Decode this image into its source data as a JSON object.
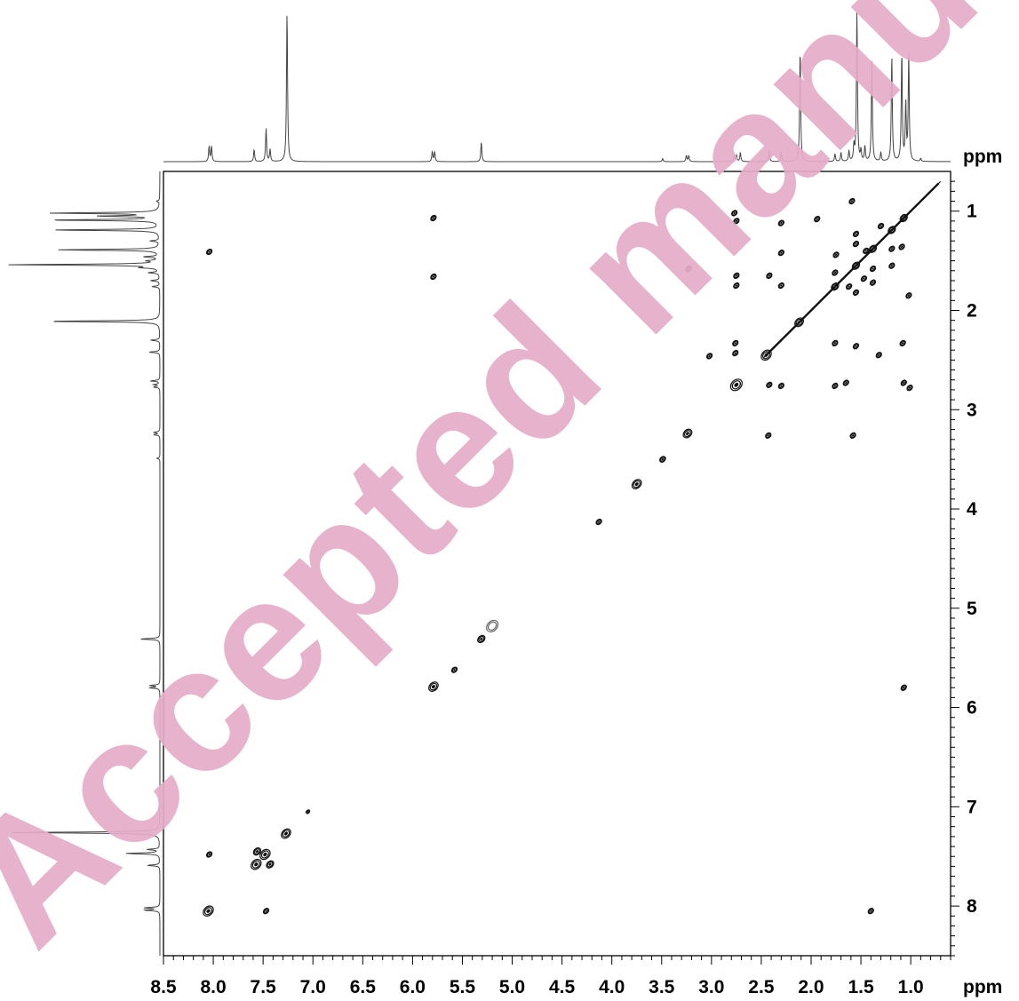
{
  "chart_data": {
    "type": "scatter",
    "subtype": "2D NMR correlation map (COSY) with 1D projection spectra",
    "x_unit_label": "ppm",
    "y_unit_label": "ppm",
    "x_axis": {
      "range": [
        8.5,
        0.6
      ],
      "reversed": true,
      "tick_labels": [
        "8.5",
        "8.0",
        "7.5",
        "7.0",
        "6.5",
        "6.0",
        "5.5",
        "5.0",
        "4.5",
        "4.0",
        "3.5",
        "3.0",
        "2.5",
        "2.0",
        "1.5",
        "1.0"
      ]
    },
    "y_axis": {
      "range": [
        0.6,
        8.5
      ],
      "position": "right",
      "tick_labels": [
        "1",
        "2",
        "3",
        "4",
        "5",
        "6",
        "7",
        "8"
      ]
    },
    "grid": false,
    "projection_peaks": [
      {
        "ppm": 8.03,
        "height": 0.2,
        "doublet": true
      },
      {
        "ppm": 7.59,
        "height": 0.08
      },
      {
        "ppm": 7.47,
        "height": 0.22
      },
      {
        "ppm": 7.43,
        "height": 0.08
      },
      {
        "ppm": 7.26,
        "height": 1.0
      },
      {
        "ppm": 5.79,
        "height": 0.13,
        "doublet": true
      },
      {
        "ppm": 5.31,
        "height": 0.13
      },
      {
        "ppm": 3.49,
        "height": 0.02
      },
      {
        "ppm": 3.24,
        "height": 0.08,
        "doublet": true
      },
      {
        "ppm": 2.76,
        "height": 0.08,
        "doublet": true
      },
      {
        "ppm": 2.71,
        "height": 0.06
      },
      {
        "ppm": 2.42,
        "height": 0.07
      },
      {
        "ppm": 2.3,
        "height": 0.06
      },
      {
        "ppm": 2.11,
        "height": 0.75
      },
      {
        "ppm": 1.76,
        "height": 0.05
      },
      {
        "ppm": 1.7,
        "height": 0.06
      },
      {
        "ppm": 1.62,
        "height": 0.07
      },
      {
        "ppm": 1.57,
        "height": 0.1
      },
      {
        "ppm": 1.54,
        "height": 1.0
      },
      {
        "ppm": 1.5,
        "height": 0.07
      },
      {
        "ppm": 1.46,
        "height": 0.1
      },
      {
        "ppm": 1.39,
        "height": 0.66
      },
      {
        "ppm": 1.3,
        "height": 0.06
      },
      {
        "ppm": 1.19,
        "height": 0.7
      },
      {
        "ppm": 1.09,
        "height": 0.72
      },
      {
        "ppm": 1.05,
        "height": 0.38
      },
      {
        "ppm": 1.02,
        "height": 0.7
      },
      {
        "ppm": 0.9,
        "height": 0.02
      }
    ],
    "diagonal_peaks": [
      {
        "x": 8.05,
        "y": 8.05,
        "size": 1.4
      },
      {
        "x": 7.57,
        "y": 7.58,
        "size": 1.4
      },
      {
        "x": 7.48,
        "y": 7.48,
        "size": 1.4
      },
      {
        "x": 7.43,
        "y": 7.58,
        "size": 1.0
      },
      {
        "x": 7.56,
        "y": 7.45,
        "size": 1.0
      },
      {
        "x": 7.27,
        "y": 7.27,
        "size": 1.3
      },
      {
        "x": 7.05,
        "y": 7.05,
        "size": 0.5
      },
      {
        "x": 5.79,
        "y": 5.79,
        "size": 1.3
      },
      {
        "x": 5.31,
        "y": 5.31,
        "size": 1.0
      },
      {
        "x": 5.2,
        "y": 5.18,
        "size": 1.6,
        "open": true
      },
      {
        "x": 3.75,
        "y": 3.75,
        "size": 1.3
      },
      {
        "x": 3.49,
        "y": 3.5,
        "size": 0.8
      },
      {
        "x": 3.24,
        "y": 3.24,
        "size": 1.2
      },
      {
        "x": 2.75,
        "y": 2.75,
        "size": 1.6
      },
      {
        "x": 2.45,
        "y": 2.45,
        "size": 1.4
      },
      {
        "x": 2.12,
        "y": 2.12,
        "size": 1.2
      },
      {
        "x": 1.76,
        "y": 1.76,
        "size": 1.0
      },
      {
        "x": 1.55,
        "y": 1.55,
        "size": 1.0
      },
      {
        "x": 1.38,
        "y": 1.38,
        "size": 1.0
      },
      {
        "x": 1.19,
        "y": 1.19,
        "size": 1.0
      },
      {
        "x": 1.07,
        "y": 1.07,
        "size": 1.0
      }
    ],
    "cross_peaks": [
      [
        8.04,
        1.41
      ],
      [
        8.04,
        7.48
      ],
      [
        7.47,
        8.05
      ],
      [
        5.79,
        1.07
      ],
      [
        5.79,
        1.66
      ],
      [
        1.07,
        5.8
      ],
      [
        1.4,
        8.05
      ],
      [
        5.58,
        5.62
      ],
      [
        4.13,
        4.13
      ],
      [
        3.02,
        2.46
      ],
      [
        2.43,
        3.26
      ],
      [
        1.58,
        3.26
      ],
      [
        2.77,
        1.02
      ],
      [
        2.75,
        1.1
      ],
      [
        3.23,
        1.58
      ],
      [
        2.3,
        1.12
      ],
      [
        2.75,
        1.65
      ],
      [
        2.75,
        1.75
      ],
      [
        2.42,
        1.65
      ],
      [
        2.3,
        1.75
      ],
      [
        2.76,
        2.33
      ],
      [
        2.76,
        2.43
      ],
      [
        2.42,
        2.75
      ],
      [
        2.3,
        2.76
      ],
      [
        1.76,
        2.76
      ],
      [
        1.65,
        2.73
      ],
      [
        1.07,
        2.73
      ],
      [
        1.01,
        2.78
      ],
      [
        1.76,
        2.33
      ],
      [
        1.55,
        2.36
      ],
      [
        1.32,
        2.45
      ],
      [
        1.08,
        2.33
      ],
      [
        1.59,
        0.9
      ],
      [
        1.55,
        1.23
      ],
      [
        1.55,
        1.33
      ],
      [
        1.75,
        1.44
      ],
      [
        1.76,
        1.62
      ],
      [
        1.62,
        1.76
      ],
      [
        1.55,
        1.82
      ],
      [
        1.38,
        1.58
      ],
      [
        1.38,
        1.72
      ],
      [
        1.19,
        1.38
      ],
      [
        1.19,
        1.55
      ],
      [
        1.09,
        1.36
      ],
      [
        1.3,
        1.15
      ],
      [
        1.02,
        1.85
      ],
      [
        1.94,
        1.08
      ],
      [
        2.3,
        1.42
      ],
      [
        1.47,
        1.68
      ],
      [
        1.45,
        1.4
      ]
    ],
    "watermark_text": "Accepted manuscript"
  }
}
